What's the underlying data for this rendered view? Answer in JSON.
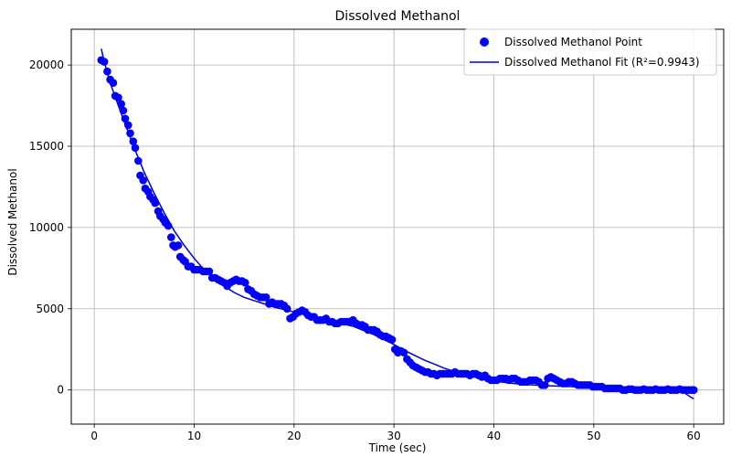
{
  "chart_data": {
    "type": "scatter",
    "title": "Dissolved Methanol",
    "xlabel": "Time (sec)",
    "ylabel": "Dissolved Methanol",
    "xlim": [
      -2.3,
      63.0
    ],
    "ylim": [
      -2100,
      22200
    ],
    "x_ticks": [
      0,
      10,
      20,
      30,
      40,
      50,
      60
    ],
    "y_ticks": [
      0,
      5000,
      10000,
      15000,
      20000
    ],
    "x_tick_labels": [
      "0",
      "10",
      "20",
      "30",
      "40",
      "50",
      "60"
    ],
    "y_tick_labels": [
      "0",
      "5000",
      "10000",
      "15000",
      "20000"
    ],
    "grid": true,
    "legend_position": "top-right",
    "colors": {
      "points": "#0000ff",
      "fit": "#0000cc"
    },
    "series": [
      {
        "name": "Dissolved Methanol Point",
        "kind": "scatter",
        "points": [
          [
            0.7,
            20300
          ],
          [
            1.0,
            20200
          ],
          [
            1.3,
            19600
          ],
          [
            1.6,
            19100
          ],
          [
            1.9,
            18900
          ],
          [
            2.1,
            18100
          ],
          [
            2.4,
            18000
          ],
          [
            2.7,
            17600
          ],
          [
            2.9,
            17200
          ],
          [
            3.1,
            16700
          ],
          [
            3.4,
            16300
          ],
          [
            3.6,
            15800
          ],
          [
            3.9,
            15300
          ],
          [
            4.1,
            14900
          ],
          [
            4.4,
            14100
          ],
          [
            4.6,
            13200
          ],
          [
            4.9,
            12900
          ],
          [
            5.1,
            12400
          ],
          [
            5.4,
            12200
          ],
          [
            5.6,
            11900
          ],
          [
            5.9,
            11700
          ],
          [
            6.1,
            11500
          ],
          [
            6.4,
            11000
          ],
          [
            6.6,
            10700
          ],
          [
            6.9,
            10500
          ],
          [
            7.1,
            10300
          ],
          [
            7.4,
            10100
          ],
          [
            7.7,
            9400
          ],
          [
            7.9,
            8900
          ],
          [
            8.1,
            8800
          ],
          [
            8.4,
            8900
          ],
          [
            8.6,
            8200
          ],
          [
            8.9,
            8000
          ],
          [
            9.1,
            7900
          ],
          [
            9.4,
            7600
          ],
          [
            9.7,
            7600
          ],
          [
            10.0,
            7400
          ],
          [
            10.3,
            7400
          ],
          [
            10.6,
            7400
          ],
          [
            10.9,
            7300
          ],
          [
            11.2,
            7300
          ],
          [
            11.5,
            7300
          ],
          [
            11.8,
            6900
          ],
          [
            12.1,
            6900
          ],
          [
            12.4,
            6800
          ],
          [
            12.7,
            6700
          ],
          [
            13.0,
            6600
          ],
          [
            13.3,
            6400
          ],
          [
            13.6,
            6600
          ],
          [
            13.9,
            6700
          ],
          [
            14.2,
            6800
          ],
          [
            14.5,
            6700
          ],
          [
            14.8,
            6700
          ],
          [
            15.1,
            6600
          ],
          [
            15.4,
            6200
          ],
          [
            15.7,
            6100
          ],
          [
            16.0,
            5900
          ],
          [
            16.3,
            5800
          ],
          [
            16.6,
            5700
          ],
          [
            16.9,
            5700
          ],
          [
            17.2,
            5700
          ],
          [
            17.5,
            5300
          ],
          [
            17.8,
            5400
          ],
          [
            18.1,
            5300
          ],
          [
            18.4,
            5300
          ],
          [
            18.7,
            5300
          ],
          [
            19.0,
            5200
          ],
          [
            19.3,
            5000
          ],
          [
            19.6,
            4400
          ],
          [
            19.9,
            4500
          ],
          [
            20.2,
            4700
          ],
          [
            20.5,
            4800
          ],
          [
            20.8,
            4900
          ],
          [
            21.1,
            4800
          ],
          [
            21.4,
            4600
          ],
          [
            21.7,
            4500
          ],
          [
            22.0,
            4500
          ],
          [
            22.3,
            4300
          ],
          [
            22.6,
            4300
          ],
          [
            22.9,
            4300
          ],
          [
            23.2,
            4400
          ],
          [
            23.5,
            4200
          ],
          [
            23.8,
            4200
          ],
          [
            24.1,
            4100
          ],
          [
            24.4,
            4100
          ],
          [
            24.7,
            4200
          ],
          [
            25.0,
            4200
          ],
          [
            25.3,
            4200
          ],
          [
            25.6,
            4200
          ],
          [
            25.9,
            4300
          ],
          [
            26.2,
            4100
          ],
          [
            26.5,
            4000
          ],
          [
            26.8,
            4000
          ],
          [
            27.1,
            3900
          ],
          [
            27.4,
            3700
          ],
          [
            27.7,
            3700
          ],
          [
            28.0,
            3700
          ],
          [
            28.3,
            3600
          ],
          [
            28.6,
            3400
          ],
          [
            28.9,
            3300
          ],
          [
            29.2,
            3300
          ],
          [
            29.5,
            3200
          ],
          [
            29.8,
            3100
          ],
          [
            30.1,
            2500
          ],
          [
            30.4,
            2300
          ],
          [
            30.7,
            2400
          ],
          [
            31.0,
            2300
          ],
          [
            31.3,
            1900
          ],
          [
            31.6,
            1700
          ],
          [
            31.9,
            1500
          ],
          [
            32.2,
            1400
          ],
          [
            32.5,
            1300
          ],
          [
            32.8,
            1200
          ],
          [
            33.1,
            1100
          ],
          [
            33.4,
            1100
          ],
          [
            33.7,
            1000
          ],
          [
            34.0,
            1000
          ],
          [
            34.3,
            900
          ],
          [
            34.6,
            1000
          ],
          [
            34.9,
            1000
          ],
          [
            35.2,
            1000
          ],
          [
            35.5,
            1000
          ],
          [
            35.8,
            1000
          ],
          [
            36.1,
            1100
          ],
          [
            36.4,
            1000
          ],
          [
            36.7,
            1000
          ],
          [
            37.0,
            1000
          ],
          [
            37.3,
            1000
          ],
          [
            37.6,
            900
          ],
          [
            37.9,
            1000
          ],
          [
            38.2,
            1000
          ],
          [
            38.5,
            900
          ],
          [
            38.8,
            800
          ],
          [
            39.1,
            900
          ],
          [
            39.4,
            700
          ],
          [
            39.7,
            600
          ],
          [
            40.0,
            600
          ],
          [
            40.3,
            600
          ],
          [
            40.6,
            700
          ],
          [
            40.9,
            700
          ],
          [
            41.2,
            700
          ],
          [
            41.5,
            600
          ],
          [
            41.8,
            700
          ],
          [
            42.1,
            700
          ],
          [
            42.4,
            600
          ],
          [
            42.7,
            500
          ],
          [
            43.0,
            500
          ],
          [
            43.3,
            500
          ],
          [
            43.6,
            600
          ],
          [
            43.9,
            600
          ],
          [
            44.2,
            600
          ],
          [
            44.5,
            500
          ],
          [
            44.8,
            300
          ],
          [
            45.1,
            300
          ],
          [
            45.4,
            700
          ],
          [
            45.7,
            800
          ],
          [
            46.0,
            700
          ],
          [
            46.3,
            600
          ],
          [
            46.6,
            500
          ],
          [
            46.9,
            400
          ],
          [
            47.2,
            400
          ],
          [
            47.5,
            500
          ],
          [
            47.8,
            500
          ],
          [
            48.1,
            400
          ],
          [
            48.4,
            300
          ],
          [
            48.7,
            300
          ],
          [
            49.0,
            300
          ],
          [
            49.3,
            300
          ],
          [
            49.6,
            300
          ],
          [
            49.9,
            200
          ],
          [
            50.2,
            200
          ],
          [
            50.5,
            200
          ],
          [
            50.8,
            200
          ],
          [
            51.1,
            100
          ],
          [
            51.4,
            100
          ],
          [
            51.7,
            100
          ],
          [
            52.0,
            100
          ],
          [
            52.3,
            100
          ],
          [
            52.6,
            100
          ],
          [
            52.9,
            0
          ],
          [
            53.2,
            0
          ],
          [
            53.5,
            50
          ],
          [
            53.8,
            50
          ],
          [
            54.1,
            0
          ],
          [
            54.4,
            0
          ],
          [
            54.7,
            0
          ],
          [
            55.0,
            50
          ],
          [
            55.3,
            0
          ],
          [
            55.6,
            0
          ],
          [
            55.9,
            0
          ],
          [
            56.2,
            50
          ],
          [
            56.5,
            0
          ],
          [
            56.8,
            0
          ],
          [
            57.1,
            0
          ],
          [
            57.4,
            50
          ],
          [
            57.7,
            0
          ],
          [
            58.0,
            0
          ],
          [
            58.3,
            0
          ],
          [
            58.6,
            50
          ],
          [
            58.9,
            0
          ],
          [
            59.2,
            0
          ],
          [
            59.5,
            0
          ],
          [
            59.8,
            0
          ],
          [
            60.0,
            0
          ]
        ]
      },
      {
        "name": "Dissolved Methanol Fit (R²=0.9943)",
        "kind": "line",
        "points": [
          [
            0.7,
            21000
          ],
          [
            1.0,
            20200
          ],
          [
            1.5,
            19100
          ],
          [
            2.0,
            18200
          ],
          [
            3.0,
            16500
          ],
          [
            4.0,
            14900
          ],
          [
            5.0,
            13400
          ],
          [
            6.0,
            12100
          ],
          [
            7.0,
            10900
          ],
          [
            8.0,
            9800
          ],
          [
            9.0,
            8900
          ],
          [
            10.0,
            8100
          ],
          [
            11.0,
            7400
          ],
          [
            12.0,
            6900
          ],
          [
            13.0,
            6400
          ],
          [
            14.0,
            6000
          ],
          [
            15.0,
            5700
          ],
          [
            16.0,
            5500
          ],
          [
            17.0,
            5300
          ],
          [
            18.0,
            5100
          ],
          [
            19.0,
            4950
          ],
          [
            20.0,
            4800
          ],
          [
            21.0,
            4650
          ],
          [
            22.0,
            4500
          ],
          [
            23.0,
            4350
          ],
          [
            24.0,
            4200
          ],
          [
            25.0,
            4050
          ],
          [
            26.0,
            3900
          ],
          [
            27.0,
            3650
          ],
          [
            28.0,
            3400
          ],
          [
            29.0,
            3100
          ],
          [
            30.0,
            2800
          ],
          [
            31.0,
            2450
          ],
          [
            32.0,
            2150
          ],
          [
            33.0,
            1850
          ],
          [
            34.0,
            1600
          ],
          [
            35.0,
            1350
          ],
          [
            36.0,
            1150
          ],
          [
            37.0,
            950
          ],
          [
            38.0,
            800
          ],
          [
            39.0,
            650
          ],
          [
            40.0,
            550
          ],
          [
            42.0,
            400
          ],
          [
            44.0,
            300
          ],
          [
            46.0,
            250
          ],
          [
            48.0,
            200
          ],
          [
            50.0,
            150
          ],
          [
            52.0,
            150
          ],
          [
            54.0,
            150
          ],
          [
            56.0,
            150
          ],
          [
            57.0,
            100
          ],
          [
            58.0,
            50
          ],
          [
            59.0,
            -150
          ],
          [
            59.6,
            -400
          ],
          [
            60.0,
            -550
          ]
        ]
      }
    ]
  }
}
